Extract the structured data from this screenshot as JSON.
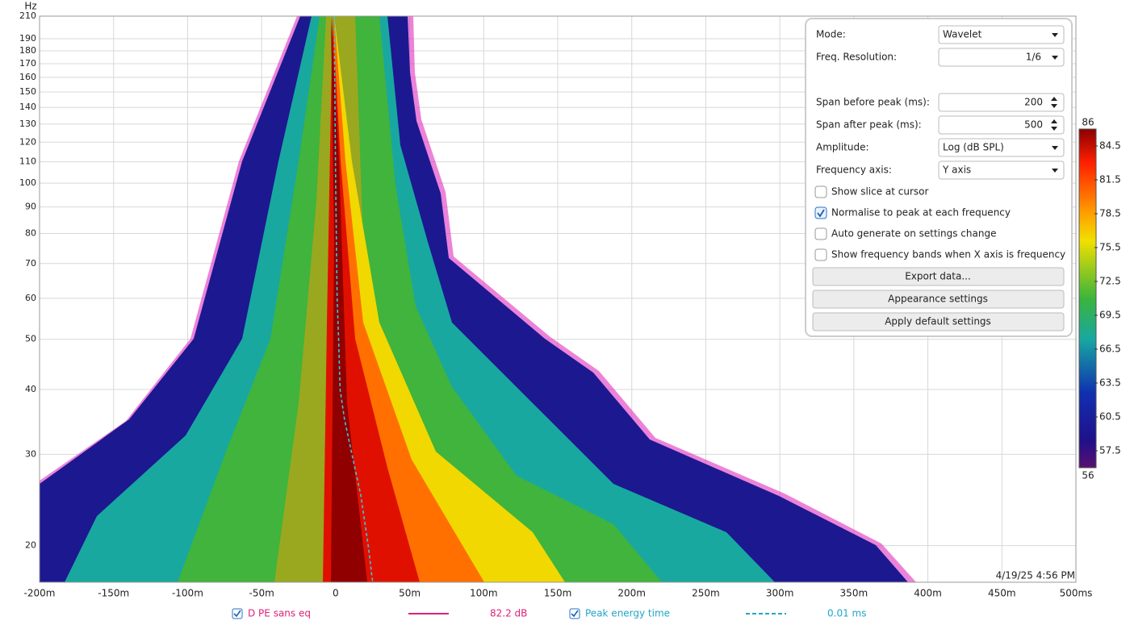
{
  "chart_data": {
    "type": "spectrogram",
    "y_label": "Hz",
    "xlim": [
      -200,
      500
    ],
    "xticks": [
      {
        "value": -200,
        "label": "-200m"
      },
      {
        "value": -150,
        "label": "-150m"
      },
      {
        "value": -100,
        "label": "-100m"
      },
      {
        "value": -50,
        "label": "-50m"
      },
      0,
      {
        "value": 50,
        "label": "50m"
      },
      {
        "value": 100,
        "label": "100m"
      },
      {
        "value": 150,
        "label": "150m"
      },
      {
        "value": 200,
        "label": "200m"
      },
      {
        "value": 250,
        "label": "250m"
      },
      {
        "value": 300,
        "label": "300m"
      },
      {
        "value": 350,
        "label": "350m"
      },
      {
        "value": 400,
        "label": "400m"
      },
      {
        "value": 450,
        "label": "450m"
      },
      {
        "value": 500,
        "label": "500ms"
      }
    ],
    "ylim": [
      17,
      210
    ],
    "log_y": true,
    "yticks": [
      20,
      30,
      40,
      50,
      60,
      70,
      80,
      90,
      100,
      110,
      120,
      130,
      140,
      150,
      160,
      170,
      180,
      190,
      210
    ],
    "grid": true,
    "series": [
      {
        "name": "Peak energy time",
        "color": "#3cc4d8",
        "x": [
          -1,
          0,
          1,
          2,
          3,
          6,
          11,
          17,
          22,
          25
        ],
        "values": [
          210,
          100,
          60,
          50,
          40,
          35,
          30,
          25,
          20,
          17
        ]
      }
    ],
    "colorbar": {
      "zlim": [
        56,
        86
      ],
      "zticks": [
        86,
        84.5,
        81.5,
        78.5,
        75.5,
        72.5,
        69.5,
        66.5,
        63.5,
        60.5,
        57.5,
        56
      ]
    },
    "timestamp": "4/19/25 4:56 PM",
    "legend": [
      {
        "label": "D PE sans eq",
        "readout": "82.2 dB",
        "color": "#e0207a",
        "checked": true,
        "dashed": false
      },
      {
        "label": "Peak energy time",
        "readout": "0.01 ms",
        "color": "#21a6c6",
        "checked": true,
        "dashed": true
      }
    ]
  },
  "settings": {
    "fields": [
      {
        "label": "Mode:",
        "value": "Wavelet",
        "control": "dropdown"
      },
      {
        "label": "Freq. Resolution:",
        "value": "1/6",
        "control": "dropdown-right"
      },
      {
        "label": "Span before peak (ms):",
        "value": 200,
        "control": "spinner"
      },
      {
        "label": "Span after peak (ms):",
        "value": 500,
        "control": "spinner"
      },
      {
        "label": "Amplitude:",
        "value": "Log (dB SPL)",
        "control": "dropdown"
      },
      {
        "label": "Frequency axis:",
        "value": "Y axis",
        "control": "dropdown"
      }
    ],
    "checkboxes": [
      {
        "label": "Show slice at cursor",
        "checked": false
      },
      {
        "label": "Normalise to peak at each frequency",
        "checked": true
      },
      {
        "label": "Auto generate on settings change",
        "checked": false
      },
      {
        "label": "Show frequency bands when X axis is frequency",
        "checked": false
      }
    ],
    "buttons": [
      "Export data...",
      "Appearance settings",
      "Apply default settings"
    ]
  }
}
